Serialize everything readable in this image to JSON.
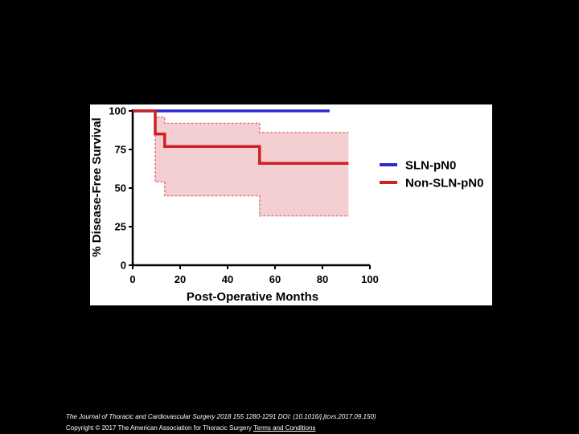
{
  "chart_data": {
    "type": "line",
    "subtype": "kaplan-meier",
    "title": "",
    "xlabel": "Post-Operative Months",
    "ylabel": "% Disease-Free Survival",
    "xlim": [
      0,
      100
    ],
    "ylim": [
      0,
      100
    ],
    "xticks": [
      0,
      20,
      40,
      60,
      80,
      100
    ],
    "yticks": [
      0,
      25,
      50,
      75,
      100
    ],
    "xtick_labels": [
      "0",
      "20",
      "40",
      "60",
      "80",
      "100"
    ],
    "ytick_labels": [
      "0",
      "25",
      "50",
      "75",
      "100"
    ],
    "legend_position": "right",
    "series": [
      {
        "name": "SLN-pN0",
        "color": "#2b2bd0",
        "step_points": [
          [
            0,
            100
          ],
          [
            83,
            100
          ]
        ]
      },
      {
        "name": "Non-SLN-pN0",
        "color": "#cc2222",
        "step_points": [
          [
            0,
            100
          ],
          [
            9.5,
            100
          ],
          [
            9.5,
            85
          ],
          [
            13.5,
            85
          ],
          [
            13.5,
            77
          ],
          [
            53.5,
            77
          ],
          [
            53.5,
            66
          ],
          [
            91,
            66
          ]
        ],
        "ci_upper": [
          [
            9.5,
            100
          ],
          [
            9.5,
            96
          ],
          [
            13.5,
            96
          ],
          [
            13.5,
            92
          ],
          [
            53.5,
            92
          ],
          [
            53.5,
            86
          ],
          [
            91,
            86
          ]
        ],
        "ci_lower": [
          [
            9.5,
            100
          ],
          [
            9.5,
            54
          ],
          [
            13.5,
            54
          ],
          [
            13.5,
            45
          ],
          [
            53.5,
            45
          ],
          [
            53.5,
            32
          ],
          [
            91,
            32
          ]
        ],
        "ci_color": "#f4cfd2"
      }
    ]
  },
  "caption": {
    "citation": "The Journal of Thoracic and Cardiovascular Surgery 2018 155 1280-1291 DOI: (10.1016/j.jtcvs.2017.09.150)",
    "copyright": "Copyright © 2017 The American Association for Thoracic Surgery",
    "terms_link": "Terms and Conditions"
  }
}
